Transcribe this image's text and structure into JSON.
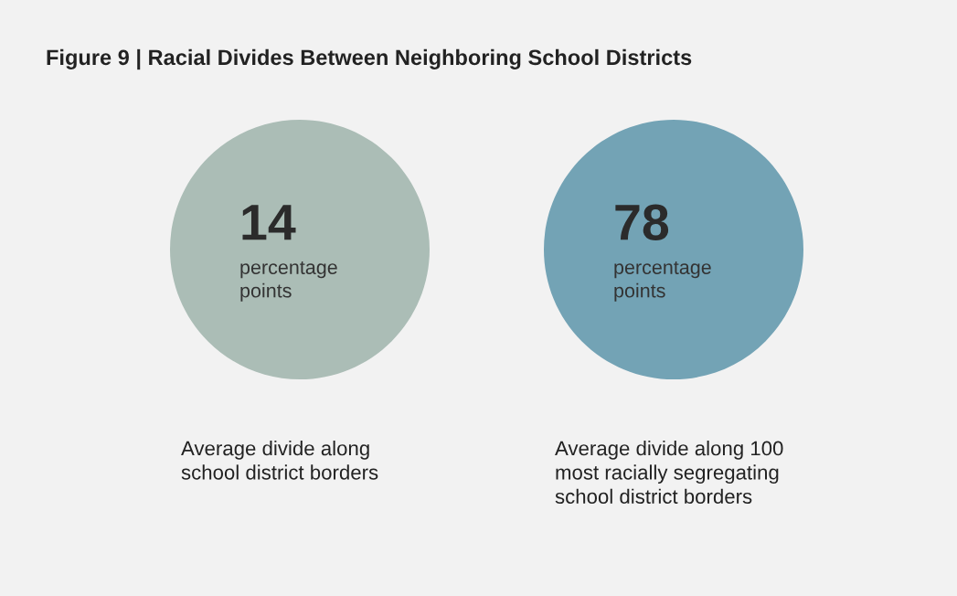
{
  "chart_data": {
    "type": "other",
    "title": "Figure 9 | Racial Divides Between Neighboring School Districts",
    "categories": [
      "Average divide along\nschool district borders",
      "Average divide along 100\nmost racially segregating\nschool district borders"
    ],
    "values": [
      14,
      78
    ],
    "data_labels": true,
    "annotations": [
      "percentage\npoints",
      "percentage\npoints"
    ],
    "colors": [
      "#abbdb6",
      "#73a3b5"
    ]
  }
}
